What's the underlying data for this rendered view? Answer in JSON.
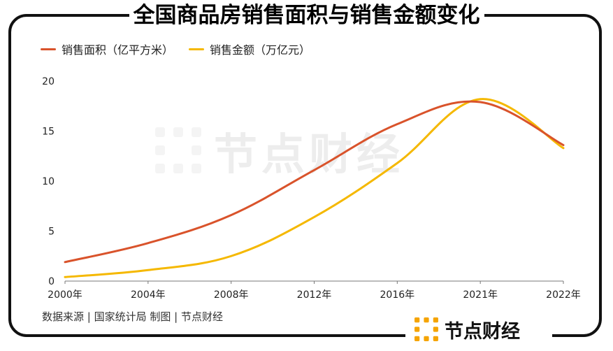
{
  "title": "全国商品房销售面积与销售金额变化",
  "source": "数据来源 | 国家统计局  制图 | 节点财经",
  "brand": "节点财经",
  "watermark": "节点财经",
  "colors": {
    "area": "#d9532b",
    "amount": "#f5b800",
    "axis": "#777777",
    "brand_icon": "#f5a400"
  },
  "chart_data": {
    "type": "line",
    "categories": [
      "2000年",
      "2004年",
      "2008年",
      "2012年",
      "2016年",
      "2021年",
      "2022年"
    ],
    "ylim": [
      0,
      20
    ],
    "yticks": [
      "0",
      "5",
      "10",
      "15",
      "20"
    ],
    "legend_position": "top-left",
    "grid": false,
    "series": [
      {
        "name": "销售面积（亿平方米）",
        "values": [
          1.9,
          3.8,
          6.6,
          11.1,
          15.7,
          17.9,
          13.6
        ]
      },
      {
        "name": "销售金额（万亿元）",
        "values": [
          0.4,
          1.1,
          2.5,
          6.4,
          11.8,
          18.2,
          13.3
        ]
      }
    ]
  }
}
